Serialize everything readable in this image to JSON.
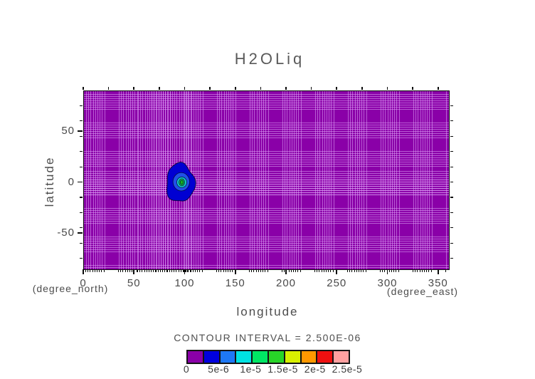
{
  "title": "H2OLiq",
  "axes": {
    "x": {
      "label": "longitude",
      "unit_label": "(degree_east)",
      "range": [
        0,
        360
      ],
      "ticks": [
        0,
        50,
        100,
        150,
        200,
        250,
        300,
        350
      ],
      "minor_tick_step": 25
    },
    "y": {
      "label": "latitude",
      "unit_label": "(degree_north)",
      "range": [
        -85,
        90
      ],
      "ticks": [
        -50,
        0,
        50
      ],
      "minor_tick_step": 25
    }
  },
  "legend": {
    "contour_interval_text": "CONTOUR INTERVAL  =  2.500E-06",
    "tick_labels": [
      "0",
      "5e-6",
      "1e-5",
      "1.5e-5",
      "2e-5",
      "2.5e-5"
    ],
    "colors": [
      "#8A00A8",
      "#0000DE",
      "#1E78F5",
      "#00E2E2",
      "#00E664",
      "#28D428",
      "#D8F000",
      "#FF9800",
      "#EE1010",
      "#FFA0A0"
    ]
  },
  "plot_colors": {
    "background_fill": "#8A00A8",
    "grid_line": "rgba(224,168,248,0.55)",
    "contour_line": "rgba(5,5,45,0.85)"
  },
  "chart_data": {
    "type": "filled-contour-map",
    "title": "H2OLiq",
    "xlabel": "longitude",
    "ylabel": "latitude",
    "x_units": "(degree_east)",
    "y_units": "(degree_north)",
    "xlim": [
      0,
      360
    ],
    "ylim": [
      -85,
      90
    ],
    "x_ticks": [
      0,
      50,
      100,
      150,
      200,
      250,
      300,
      350
    ],
    "y_ticks": [
      -50,
      0,
      50
    ],
    "contour_interval": 2.5e-06,
    "levels": [
      0,
      2.5e-06,
      5e-06,
      7.5e-06,
      1e-05,
      1.25e-05,
      1.5e-05,
      1.75e-05,
      2e-05,
      2.25e-05,
      2.5e-05
    ],
    "field_background_band": [
      0,
      2.5e-06
    ],
    "feature": {
      "description": "single localized maximum near the equator",
      "center_lon": 95,
      "center_lat": 0,
      "peak_value_band": [
        1.25e-05,
        1.5e-05
      ],
      "rings": [
        {
          "min_level": 2.5e-06,
          "color": "#0000D2",
          "rx_deg": 14.0,
          "ry_deg": 19.0,
          "dlon": 0,
          "dlat": 0,
          "irregular": true
        },
        {
          "min_level": 5e-06,
          "color": "#2050E8",
          "rx_deg": 8.2,
          "ry_deg": 9.0,
          "dlon": 1.0,
          "dlat": 1.0,
          "irregular": false
        },
        {
          "min_level": 7.5e-06,
          "color": "#10C8C8",
          "rx_deg": 4.9,
          "ry_deg": 5.2,
          "dlon": 1.5,
          "dlat": 0.5,
          "irregular": false
        },
        {
          "min_level": 1e-05,
          "color": "#14C850",
          "rx_deg": 2.8,
          "ry_deg": 3.5,
          "dlon": 1.5,
          "dlat": 0.5,
          "irregular": false
        },
        {
          "min_level": 1.25e-05,
          "color": "#16B41E",
          "rx_deg": 1.5,
          "ry_deg": 2.1,
          "dlon": 1.5,
          "dlat": 0.5,
          "irregular": false
        }
      ]
    },
    "grid_note": "stretched model mesh drawn as clustered light-purple grid lines",
    "legend_position": "bottom-center"
  }
}
